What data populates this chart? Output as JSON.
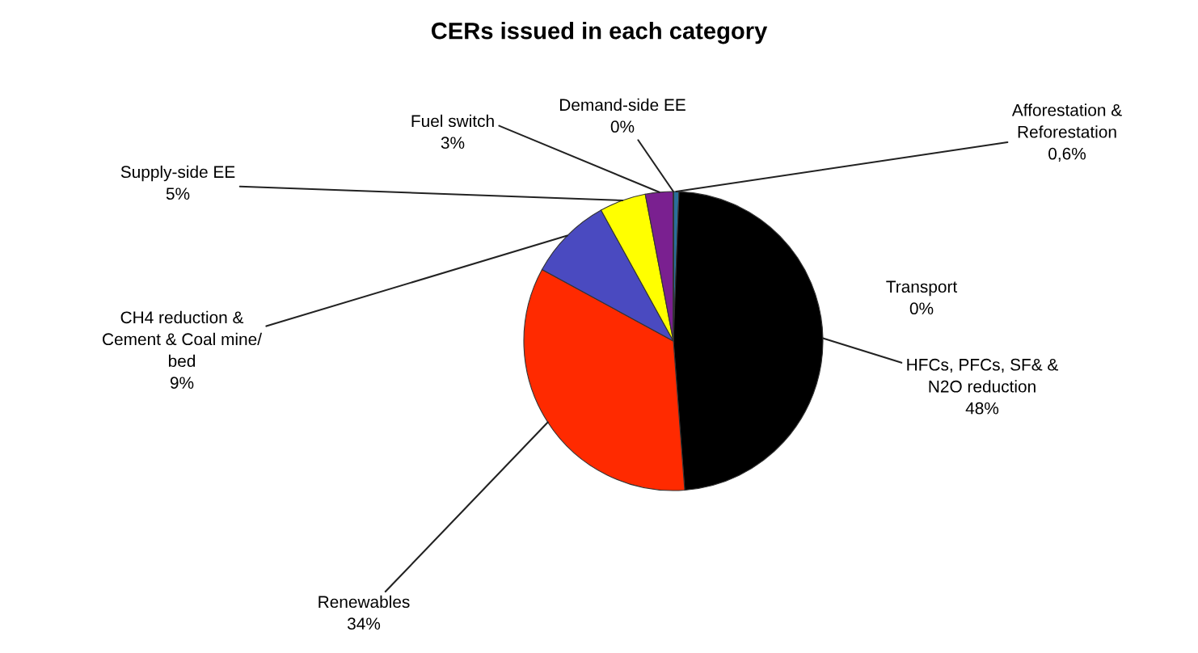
{
  "chart_data": {
    "type": "pie",
    "title": "CERs issued in each category",
    "categories": [
      "Afforestation &\nReforestation",
      "HFCs, PFCs, SF& &\nN2O reduction",
      "Renewables",
      "CH4 reduction &\nCement & Coal mine/\nbed",
      "Supply-side EE",
      "Fuel switch",
      "Demand-side EE",
      "Transport"
    ],
    "values": [
      0.6,
      48,
      34,
      9,
      5,
      3,
      0,
      0
    ],
    "value_labels": [
      "0,6%",
      "48%",
      "34%",
      "9%",
      "5%",
      "3%",
      "0%",
      "0%"
    ],
    "colors": [
      "#2a6f9a",
      "#000000",
      "#ff2a00",
      "#4a4ac0",
      "#ffff00",
      "#7a2090",
      "#3060c0",
      "#00a0a0"
    ]
  }
}
